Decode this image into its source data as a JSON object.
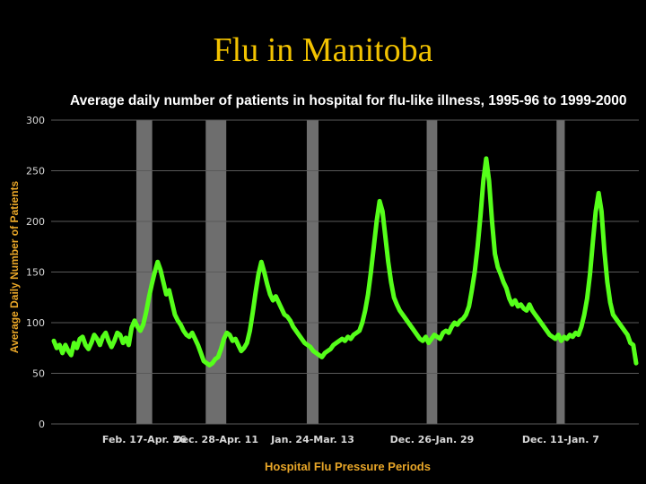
{
  "slide": {
    "title": "Flu in Manitoba"
  },
  "chart_data": {
    "type": "line",
    "title": "Average daily number of patients in hospital for flu-like illness, 1995-96 to 1999-2000",
    "ylabel": "Average Daily Number of Patients",
    "xlabel": "Hospital Flu Pressure Periods",
    "ylim": [
      0,
      300
    ],
    "yticks": [
      0,
      50,
      100,
      150,
      200,
      250,
      300
    ],
    "grid": "horizontal",
    "series_color": "#55ff1a",
    "band_color": "#6e6e6e",
    "pressure_periods": [
      {
        "label": "Feb. 17-Apr. 26",
        "start": 0.145,
        "end": 0.172
      },
      {
        "label": "Dec. 28-Apr. 11",
        "start": 0.263,
        "end": 0.298
      },
      {
        "label": "Jan. 24-Mar. 13",
        "start": 0.435,
        "end": 0.455
      },
      {
        "label": "Dec. 26-Jan. 29",
        "start": 0.639,
        "end": 0.657
      },
      {
        "label": "Dec. 11-Jan. 7",
        "start": 0.86,
        "end": 0.874
      }
    ],
    "series": [
      {
        "values": [
          82,
          75,
          78,
          70,
          78,
          72,
          68,
          80,
          75,
          84,
          86,
          78,
          74,
          80,
          88,
          84,
          78,
          86,
          90,
          82,
          76,
          82,
          90,
          88,
          80,
          85,
          78,
          95,
          102,
          96,
          92,
          98,
          110,
          125,
          138,
          150,
          160,
          152,
          140,
          128,
          132,
          120,
          108,
          102,
          98,
          92,
          88,
          86,
          90,
          84,
          78,
          70,
          62,
          60,
          58,
          60,
          64,
          66,
          74,
          84,
          90,
          88,
          82,
          84,
          78,
          72,
          75,
          80,
          92,
          110,
          130,
          148,
          160,
          150,
          138,
          128,
          122,
          126,
          120,
          114,
          108,
          106,
          102,
          96,
          92,
          88,
          84,
          80,
          78,
          76,
          72,
          70,
          68,
          66,
          70,
          72,
          74,
          78,
          80,
          82,
          84,
          82,
          86,
          84,
          88,
          90,
          92,
          100,
          112,
          128,
          150,
          175,
          200,
          220,
          210,
          185,
          160,
          140,
          125,
          118,
          112,
          108,
          104,
          100,
          96,
          92,
          88,
          84,
          82,
          86,
          80,
          84,
          88,
          86,
          84,
          90,
          92,
          90,
          96,
          100,
          98,
          102,
          104,
          108,
          116,
          132,
          150,
          175,
          205,
          240,
          262,
          240,
          200,
          168,
          155,
          148,
          140,
          134,
          124,
          118,
          122,
          116,
          118,
          114,
          112,
          118,
          112,
          108,
          104,
          100,
          96,
          92,
          88,
          86,
          84,
          88,
          82,
          86,
          84,
          88,
          86,
          90,
          88,
          96,
          108,
          124,
          148,
          180,
          210,
          228,
          210,
          170,
          140,
          120,
          108,
          104,
          100,
          96,
          92,
          88,
          80,
          78,
          60
        ]
      }
    ]
  }
}
